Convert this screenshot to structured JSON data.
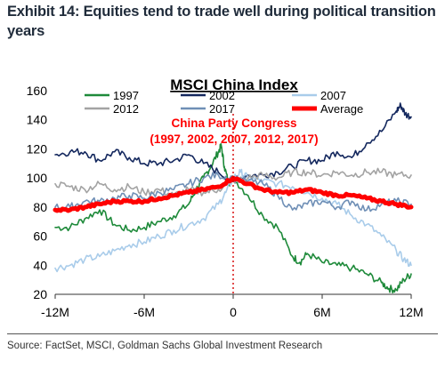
{
  "exhibit": {
    "title": "Exhibit 14: Equities tend to trade well during political transition years"
  },
  "source": "Source: FactSet, MSCI, Goldman Sachs Global Investment Research",
  "chart_data": {
    "type": "line",
    "title": "MSCI China Index",
    "annotation_line1": "China Party Congress",
    "annotation_line2": "(1997, 2002, 2007, 2012, 2017)",
    "x_tick_labels": [
      "-12M",
      "-6M",
      "0",
      "6M",
      "12M"
    ],
    "x_ticks": [
      -12,
      -6,
      0,
      6,
      12
    ],
    "xlim": [
      -12,
      12
    ],
    "ylim": [
      20,
      160
    ],
    "y_ticks": [
      20,
      40,
      60,
      80,
      100,
      120,
      140,
      160
    ],
    "y_tick_labels": [
      "20",
      "40",
      "60",
      "80",
      "100",
      "120",
      "140",
      "160"
    ],
    "event_line_x": 0,
    "grid": false,
    "legend_placement": "top",
    "series": [
      {
        "name": "1997",
        "color": "#1e8a3a",
        "width": 1.6,
        "points": [
          [
            -12,
            66
          ],
          [
            -11,
            66
          ],
          [
            -10,
            72
          ],
          [
            -9,
            78
          ],
          [
            -8,
            68
          ],
          [
            -7,
            64
          ],
          [
            -6,
            66
          ],
          [
            -5,
            70
          ],
          [
            -4,
            74
          ],
          [
            -3,
            82
          ],
          [
            -2.5,
            92
          ],
          [
            -2,
            100
          ],
          [
            -1.5,
            108
          ],
          [
            -1,
            118
          ],
          [
            -0.8,
            122
          ],
          [
            -0.6,
            108
          ],
          [
            -0.3,
            96
          ],
          [
            0,
            100
          ],
          [
            1,
            88
          ],
          [
            2,
            74
          ],
          [
            3,
            66
          ],
          [
            4,
            46
          ],
          [
            4.5,
            42
          ],
          [
            5,
            48
          ],
          [
            6,
            42
          ],
          [
            7,
            40
          ],
          [
            8,
            38
          ],
          [
            9,
            34
          ],
          [
            10,
            28
          ],
          [
            10.5,
            24
          ],
          [
            11,
            23
          ],
          [
            11.5,
            30
          ],
          [
            12,
            34
          ]
        ]
      },
      {
        "name": "2002",
        "color": "#14285e",
        "width": 1.6,
        "points": [
          [
            -12,
            116
          ],
          [
            -11,
            118
          ],
          [
            -10,
            118
          ],
          [
            -9,
            112
          ],
          [
            -8,
            118
          ],
          [
            -7,
            114
          ],
          [
            -6,
            110
          ],
          [
            -5,
            110
          ],
          [
            -4,
            112
          ],
          [
            -3,
            116
          ],
          [
            -2,
            110
          ],
          [
            -1,
            104
          ],
          [
            0,
            98
          ],
          [
            1,
            102
          ],
          [
            2,
            102
          ],
          [
            3,
            104
          ],
          [
            4,
            108
          ],
          [
            5,
            112
          ],
          [
            6,
            112
          ],
          [
            7,
            118
          ],
          [
            8,
            114
          ],
          [
            9,
            124
          ],
          [
            10,
            132
          ],
          [
            11,
            146
          ],
          [
            11.3,
            150
          ],
          [
            11.6,
            144
          ],
          [
            12,
            142
          ]
        ]
      },
      {
        "name": "2007",
        "color": "#a9ccea",
        "width": 1.6,
        "points": [
          [
            -12,
            38
          ],
          [
            -11,
            40
          ],
          [
            -10,
            44
          ],
          [
            -9,
            46
          ],
          [
            -8,
            50
          ],
          [
            -7,
            54
          ],
          [
            -6,
            56
          ],
          [
            -5,
            60
          ],
          [
            -4,
            64
          ],
          [
            -3,
            68
          ],
          [
            -2,
            72
          ],
          [
            -1,
            82
          ],
          [
            -0.5,
            90
          ],
          [
            0,
            100
          ],
          [
            0.5,
            104
          ],
          [
            1,
            100
          ],
          [
            2,
            98
          ],
          [
            3,
            96
          ],
          [
            4,
            94
          ],
          [
            5,
            90
          ],
          [
            6,
            86
          ],
          [
            7,
            82
          ],
          [
            8,
            74
          ],
          [
            9,
            68
          ],
          [
            10,
            60
          ],
          [
            11,
            50
          ],
          [
            11.5,
            44
          ],
          [
            12,
            40
          ]
        ]
      },
      {
        "name": "2012",
        "color": "#a3a3a3",
        "width": 1.6,
        "points": [
          [
            -12,
            96
          ],
          [
            -11,
            94
          ],
          [
            -10,
            92
          ],
          [
            -9,
            96
          ],
          [
            -8,
            92
          ],
          [
            -7,
            94
          ],
          [
            -6,
            90
          ],
          [
            -5,
            92
          ],
          [
            -4,
            88
          ],
          [
            -3,
            92
          ],
          [
            -2,
            90
          ],
          [
            -1,
            92
          ],
          [
            0,
            98
          ],
          [
            1,
            100
          ],
          [
            2,
            102
          ],
          [
            3,
            100
          ],
          [
            4,
            104
          ],
          [
            5,
            104
          ],
          [
            6,
            102
          ],
          [
            7,
            104
          ],
          [
            8,
            102
          ],
          [
            9,
            104
          ],
          [
            10,
            104
          ],
          [
            11,
            102
          ],
          [
            12,
            102
          ]
        ]
      },
      {
        "name": "2017",
        "color": "#6f8fb6",
        "width": 1.6,
        "points": [
          [
            -12,
            80
          ],
          [
            -11,
            80
          ],
          [
            -10,
            84
          ],
          [
            -9,
            84
          ],
          [
            -8,
            86
          ],
          [
            -7,
            88
          ],
          [
            -6,
            86
          ],
          [
            -5,
            90
          ],
          [
            -4,
            92
          ],
          [
            -3,
            96
          ],
          [
            -2,
            100
          ],
          [
            -1,
            102
          ],
          [
            0,
            100
          ],
          [
            1,
            98
          ],
          [
            2,
            96
          ],
          [
            3,
            88
          ],
          [
            4,
            78
          ],
          [
            5,
            82
          ],
          [
            6,
            84
          ],
          [
            7,
            80
          ],
          [
            8,
            84
          ],
          [
            9,
            78
          ],
          [
            10,
            82
          ],
          [
            11,
            84
          ],
          [
            12,
            82
          ]
        ]
      },
      {
        "name": "Average",
        "color": "#ff0000",
        "width": 5,
        "points": [
          [
            -12,
            78
          ],
          [
            -11,
            78
          ],
          [
            -10,
            80
          ],
          [
            -9,
            82
          ],
          [
            -8,
            84
          ],
          [
            -7,
            84
          ],
          [
            -6,
            84
          ],
          [
            -5,
            86
          ],
          [
            -4,
            88
          ],
          [
            -3,
            90
          ],
          [
            -2,
            92
          ],
          [
            -1,
            94
          ],
          [
            0,
            100
          ],
          [
            1,
            96
          ],
          [
            2,
            92
          ],
          [
            3,
            90
          ],
          [
            4,
            90
          ],
          [
            5,
            92
          ],
          [
            6,
            90
          ],
          [
            7,
            88
          ],
          [
            8,
            88
          ],
          [
            9,
            86
          ],
          [
            10,
            84
          ],
          [
            11,
            82
          ],
          [
            12,
            80
          ]
        ]
      }
    ]
  }
}
